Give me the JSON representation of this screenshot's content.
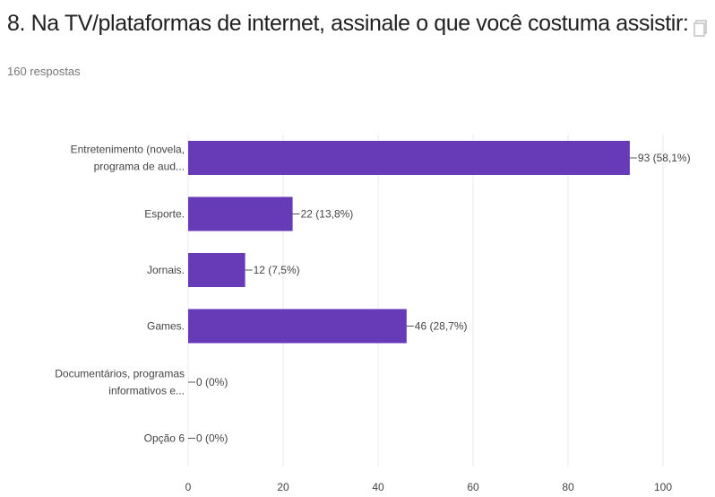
{
  "header": {
    "title": "8. Na TV/plataformas de internet, assinale o que você costuma assistir:",
    "responses": "160 respostas",
    "copy_icon": "copy-icon"
  },
  "colors": {
    "bar": "#673ab7",
    "grid": "#e8e8e8",
    "axis_text": "#444444",
    "title": "#212121",
    "subtitle": "#757575"
  },
  "chart_data": {
    "type": "bar",
    "orientation": "horizontal",
    "categories": [
      [
        "Entretenimento (novela,",
        "programa de aud..."
      ],
      [
        "Esporte."
      ],
      [
        "Jornais."
      ],
      [
        "Games."
      ],
      [
        "Documentários, programas",
        "informativos e..."
      ],
      [
        "Opção 6"
      ]
    ],
    "values": [
      93,
      22,
      12,
      46,
      0,
      0
    ],
    "data_labels": [
      "93 (58,1%)",
      "22 (13,8%)",
      "12 (7,5%)",
      "46 (28,7%)",
      "0 (0%)",
      "0 (0%)"
    ],
    "xlim": [
      0,
      100
    ],
    "xticks": [
      0,
      20,
      40,
      60,
      80,
      100
    ],
    "grid": true,
    "title": "",
    "xlabel": "",
    "ylabel": ""
  }
}
